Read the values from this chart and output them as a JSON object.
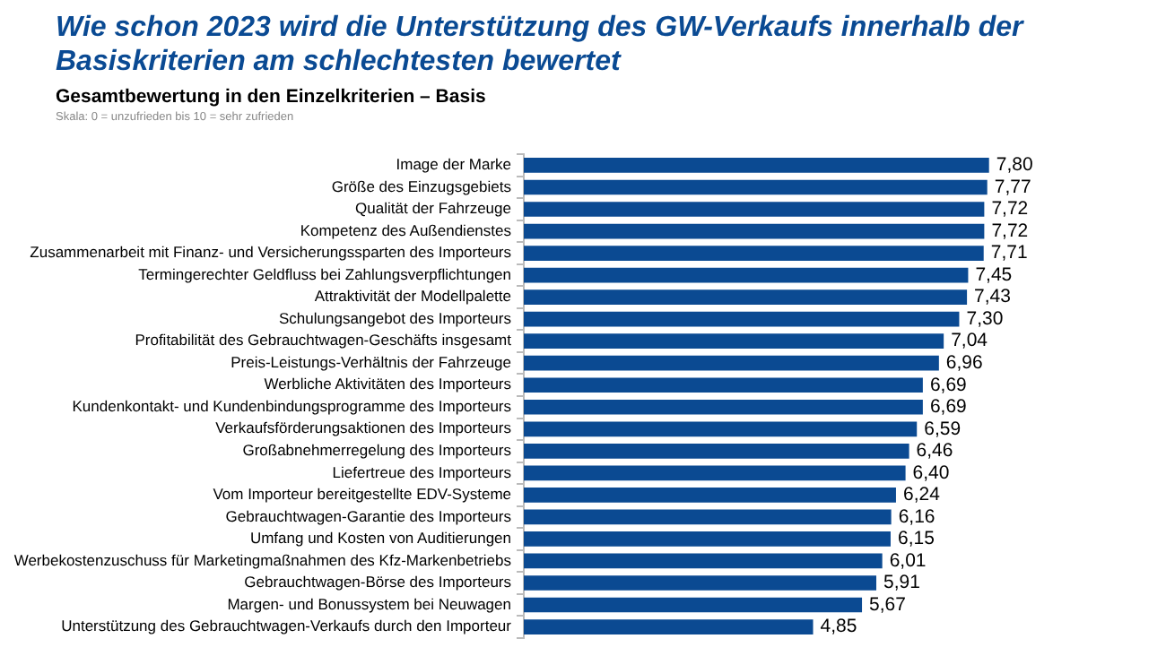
{
  "chart_data": {
    "type": "bar",
    "orientation": "horizontal",
    "title": "Wie schon 2023 wird die Unterstützung des GW-Verkaufs innerhalb der Basiskriterien am schlechtesten bewertet",
    "subtitle": "Gesamtbewertung in den Einzelkriterien – Basis",
    "annotations": [
      "Skala: 0 = unzufrieden bis 10 = sehr zufrieden"
    ],
    "categories": [
      "Image der Marke",
      "Größe des Einzugsgebiets",
      "Qualität der Fahrzeuge",
      "Kompetenz des Außendienstes",
      "Zusammenarbeit mit Finanz- und Versicherungssparten des Importeurs",
      "Termingerechter Geldfluss bei Zahlungsverpflichtungen",
      "Attraktivität der Modellpalette",
      "Schulungsangebot des Importeurs",
      "Profitabilität des Gebrauchtwagen-Geschäfts insgesamt",
      "Preis-Leistungs-Verhältnis der Fahrzeuge",
      "Werbliche Aktivitäten des Importeurs",
      "Kundenkontakt- und Kundenbindungsprogramme des Importeurs",
      "Verkaufsförderungsaktionen des Importeurs",
      "Großabnehmerregelung des Importeurs",
      "Liefertreue des Importeurs",
      "Vom Importeur bereitgestellte EDV-Systeme",
      "Gebrauchtwagen-Garantie des Importeurs",
      "Umfang und Kosten von Auditierungen",
      "Werbekostenzuschuss für Marketingmaßnahmen des Kfz-Markenbetriebs",
      "Gebrauchtwagen-Börse des Importeurs",
      "Margen- und Bonussystem bei Neuwagen",
      "Unterstützung des Gebrauchtwagen-Verkaufs durch den Importeur"
    ],
    "values": [
      7.8,
      7.77,
      7.72,
      7.72,
      7.71,
      7.45,
      7.43,
      7.3,
      7.04,
      6.96,
      6.69,
      6.69,
      6.59,
      6.46,
      6.4,
      6.24,
      6.16,
      6.15,
      6.01,
      5.91,
      5.67,
      4.85
    ],
    "value_labels": [
      "7,80",
      "7,77",
      "7,72",
      "7,72",
      "7,71",
      "7,45",
      "7,43",
      "7,30",
      "7,04",
      "6,96",
      "6,69",
      "6,69",
      "6,59",
      "6,46",
      "6,40",
      "6,24",
      "6,16",
      "6,15",
      "6,01",
      "5,91",
      "5,67",
      "4,85"
    ],
    "color": "#0b4a92",
    "tick_labels": "y"
  }
}
